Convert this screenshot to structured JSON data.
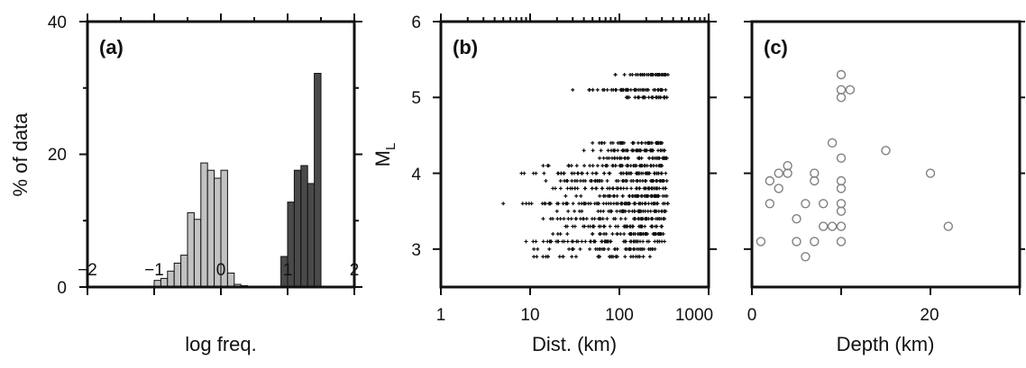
{
  "chart_data": [
    {
      "panel": "a",
      "type": "bar",
      "panel_label": "(a)",
      "xlabel": "log freq.",
      "ylabel": "% of data",
      "xlim": [
        -2,
        2
      ],
      "ylim": [
        0,
        40
      ],
      "bin_width": 0.1,
      "x_ticks": [
        -2,
        -1,
        0,
        1,
        2
      ],
      "x_tick_labels": [
        "−2",
        "−1",
        "0",
        "1",
        "2"
      ],
      "y_ticks": [
        0,
        20,
        40
      ],
      "y_tick_labels": [
        "0",
        "20",
        "40"
      ],
      "grid": false,
      "series": [
        {
          "bars": [
            {
              "x0": -1.0,
              "value": 1
            },
            {
              "x0": -0.9,
              "value": 1.3
            },
            {
              "x0": -0.8,
              "value": 2.4
            },
            {
              "x0": -0.7,
              "value": 3.6
            },
            {
              "x0": -0.6,
              "value": 4.8
            },
            {
              "x0": -0.5,
              "value": 11.2
            },
            {
              "x0": -0.4,
              "value": 10.2
            },
            {
              "x0": -0.3,
              "value": 18.7
            },
            {
              "x0": -0.2,
              "value": 17.6
            },
            {
              "x0": -0.1,
              "value": 16.4
            },
            {
              "x0": 0.0,
              "value": 17.6
            },
            {
              "x0": 0.1,
              "value": 2.1
            },
            {
              "x0": 0.2,
              "value": 0.4
            },
            {
              "x0": 0.3,
              "value": 0.2
            },
            {
              "x0": 0.4,
              "value": 0.1
            }
          ],
          "color": "#c2c2c2"
        },
        {
          "bars": [
            {
              "x0": 0.9,
              "value": 4.6
            },
            {
              "x0": 1.0,
              "value": 12.8
            },
            {
              "x0": 1.1,
              "value": 17.6
            },
            {
              "x0": 1.2,
              "value": 18.3
            },
            {
              "x0": 1.3,
              "value": 15.6
            },
            {
              "x0": 1.4,
              "value": 32.2
            }
          ],
          "color": "#4a4a4a"
        }
      ]
    },
    {
      "panel": "b",
      "type": "scatter",
      "panel_label": "(b)",
      "xlabel": "Dist. (km)",
      "ylabel": "M",
      "ylabel_subscript": "L",
      "xscale": "log",
      "xlim": [
        1,
        1000
      ],
      "ylim": [
        2.5,
        6
      ],
      "x_ticks": [
        1,
        10,
        100,
        1000
      ],
      "x_tick_labels": [
        "1",
        "10",
        "100",
        "1000"
      ],
      "y_ticks": [
        3,
        4,
        5,
        6
      ],
      "y_tick_labels": [
        "3",
        "4",
        "5",
        "6"
      ],
      "grid": false,
      "marker": "small plus",
      "color": "#111111",
      "rows": [
        {
          "y": 5.3,
          "x_min": 90,
          "x_max": 350,
          "n": 44
        },
        {
          "y": 5.1,
          "x_min": 30,
          "x_max": 330,
          "n": 48
        },
        {
          "y": 5.0,
          "x_min": 120,
          "x_max": 340,
          "n": 34
        },
        {
          "y": 4.4,
          "x_min": 50,
          "x_max": 300,
          "n": 40
        },
        {
          "y": 4.3,
          "x_min": 40,
          "x_max": 320,
          "n": 44
        },
        {
          "y": 4.2,
          "x_min": 60,
          "x_max": 340,
          "n": 38
        },
        {
          "y": 4.1,
          "x_min": 14,
          "x_max": 300,
          "n": 52
        },
        {
          "y": 4.0,
          "x_min": 8,
          "x_max": 330,
          "n": 62
        },
        {
          "y": 3.9,
          "x_min": 15,
          "x_max": 340,
          "n": 56
        },
        {
          "y": 3.8,
          "x_min": 18,
          "x_max": 330,
          "n": 54
        },
        {
          "y": 3.7,
          "x_min": 25,
          "x_max": 340,
          "n": 50
        },
        {
          "y": 3.6,
          "x_min": 5,
          "x_max": 350,
          "n": 72
        },
        {
          "y": 3.5,
          "x_min": 20,
          "x_max": 330,
          "n": 50
        },
        {
          "y": 3.4,
          "x_min": 14,
          "x_max": 320,
          "n": 52
        },
        {
          "y": 3.3,
          "x_min": 25,
          "x_max": 300,
          "n": 46
        },
        {
          "y": 3.2,
          "x_min": 18,
          "x_max": 310,
          "n": 48
        },
        {
          "y": 3.1,
          "x_min": 9,
          "x_max": 320,
          "n": 58
        },
        {
          "y": 3.0,
          "x_min": 11,
          "x_max": 250,
          "n": 40
        },
        {
          "y": 2.9,
          "x_min": 11,
          "x_max": 220,
          "n": 30
        }
      ]
    },
    {
      "panel": "c",
      "type": "scatter",
      "panel_label": "(c)",
      "xlabel": "Depth (km)",
      "ylabel": "",
      "xlim": [
        0,
        30
      ],
      "ylim": [
        2.5,
        6
      ],
      "x_ticks": [
        0,
        20
      ],
      "x_tick_labels": [
        "0",
        "20"
      ],
      "y_ticks": [
        3,
        4,
        5,
        6
      ],
      "grid": false,
      "marker": "open circle",
      "color": "#808080",
      "points": [
        {
          "x": 10,
          "y": 5.3
        },
        {
          "x": 10,
          "y": 5.1
        },
        {
          "x": 11,
          "y": 5.1
        },
        {
          "x": 10,
          "y": 5.0
        },
        {
          "x": 9,
          "y": 4.4
        },
        {
          "x": 15,
          "y": 4.3
        },
        {
          "x": 10,
          "y": 4.2
        },
        {
          "x": 4,
          "y": 4.1
        },
        {
          "x": 3,
          "y": 4.0
        },
        {
          "x": 4,
          "y": 4.0
        },
        {
          "x": 7,
          "y": 4.0
        },
        {
          "x": 20,
          "y": 4.0
        },
        {
          "x": 2,
          "y": 3.9
        },
        {
          "x": 7,
          "y": 3.9
        },
        {
          "x": 10,
          "y": 3.9
        },
        {
          "x": 3,
          "y": 3.8
        },
        {
          "x": 10,
          "y": 3.8
        },
        {
          "x": 2,
          "y": 3.6
        },
        {
          "x": 6,
          "y": 3.6
        },
        {
          "x": 8,
          "y": 3.6
        },
        {
          "x": 10,
          "y": 3.6
        },
        {
          "x": 10,
          "y": 3.5
        },
        {
          "x": 5,
          "y": 3.4
        },
        {
          "x": 8,
          "y": 3.3
        },
        {
          "x": 9,
          "y": 3.3
        },
        {
          "x": 10,
          "y": 3.3
        },
        {
          "x": 22,
          "y": 3.3
        },
        {
          "x": 1,
          "y": 3.1
        },
        {
          "x": 5,
          "y": 3.1
        },
        {
          "x": 7,
          "y": 3.1
        },
        {
          "x": 10,
          "y": 3.1
        },
        {
          "x": 6,
          "y": 2.9
        }
      ]
    }
  ]
}
